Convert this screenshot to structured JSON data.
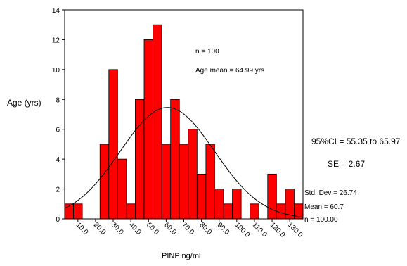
{
  "chart_data": {
    "type": "bar",
    "xlabel": "PINP ng/ml",
    "ylabel": "Age (yrs)",
    "ylim": [
      0,
      14
    ],
    "y_ticks": [
      0,
      2,
      4,
      6,
      8,
      10,
      12,
      14
    ],
    "bin_start": 2.5,
    "bin_width": 5,
    "values": [
      1,
      1,
      0,
      0,
      5,
      10,
      4,
      1,
      8,
      12,
      13,
      5,
      8,
      5,
      6,
      3,
      5,
      2,
      1,
      2,
      0,
      1,
      0,
      3,
      1,
      2,
      1
    ],
    "x_tick_values": [
      10,
      20,
      30,
      40,
      50,
      60,
      70,
      80,
      90,
      100,
      110,
      120,
      130
    ],
    "x_tick_labels": [
      "10.0",
      "20.0",
      "30.0",
      "40.0",
      "50.0",
      "60.0",
      "70.0",
      "80.0",
      "90.0",
      "100.0",
      "110.0",
      "120.0",
      "130.0"
    ],
    "bar_color": "#ff0000",
    "normal_curve": {
      "mean": 60.7,
      "sd": 26.74,
      "n": 100
    },
    "annotations": {
      "n": "n = 100",
      "age_mean": "Age mean = 64.99 yrs",
      "ci": "95%CI = 55.35 to 65.97",
      "se": "SE = 2.67"
    },
    "stats": {
      "std_dev": "Std. Dev = 26.74",
      "mean": "Mean = 60.7",
      "n": "n = 100.00"
    }
  }
}
